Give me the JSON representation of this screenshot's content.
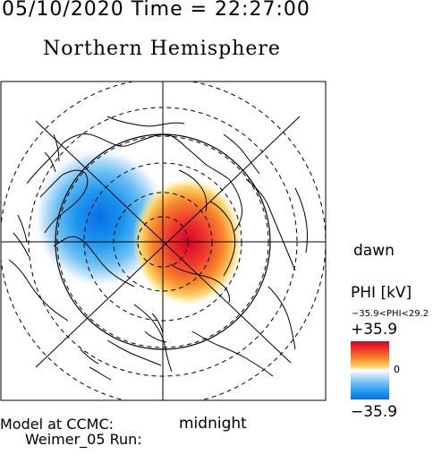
{
  "header": {
    "datetime": "05/10/2020 Time = 22:27:00",
    "hemisphere": "Northern Hemisphere"
  },
  "map": {
    "label_dawn": "dawn",
    "label_midnight": "midnight"
  },
  "colorbar": {
    "title": "PHI [kV]",
    "range_text": "−35.9<PHI<29.2",
    "max_label": "+35.9",
    "zero_label": "0",
    "min_label": "−35.9",
    "colors": {
      "positive": "#d6002a",
      "neutral": "#ffffff",
      "negative": "#0a6ee6"
    }
  },
  "footer": {
    "model_line1": "Model at CCMC:",
    "model_line2": "Weimer_05 Run:"
  }
}
